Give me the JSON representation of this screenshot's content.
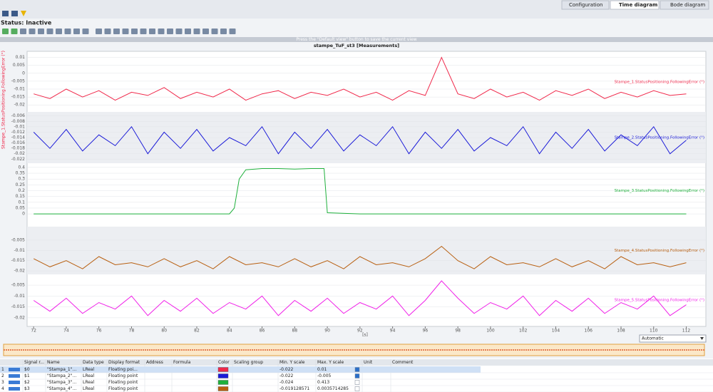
{
  "tabs": [
    "Configuration",
    "Time diagram",
    "Bode diagram"
  ],
  "status": "Status: Inactive",
  "hint": "Press the \"Default view\" button to save the current view",
  "plot": {
    "type": "line",
    "title": "stampe_TuF_st3 [Measurements]",
    "x_label": "[s]",
    "y_axis_label": "Stampe_1.StatusPositioning.FollowingError (°)",
    "xlim": [
      71.6,
      113.2
    ],
    "xticks": [
      72,
      74,
      76,
      78,
      80,
      82,
      84,
      86,
      88,
      90,
      92,
      94,
      96,
      98,
      100,
      102,
      104,
      106,
      108,
      110,
      112
    ],
    "panels": [
      {
        "name": "Stampe_1.StatusPositioning.FollowingError (°)",
        "color": "#f0284a",
        "ylim": [
          -0.0235,
          0.0125
        ],
        "yticks": [
          0.01,
          0.005,
          0,
          -0.005,
          -0.01,
          -0.015,
          -0.02
        ],
        "x": [
          72,
          73,
          74,
          75,
          76,
          77,
          78,
          79,
          80,
          81,
          82,
          83,
          84,
          85,
          86,
          87,
          88,
          89,
          90,
          91,
          92,
          93,
          94,
          95,
          96,
          97,
          98,
          99,
          100,
          101,
          102,
          103,
          104,
          105,
          106,
          107,
          108,
          109,
          110,
          111,
          112
        ],
        "values": [
          -0.013,
          -0.016,
          -0.01,
          -0.015,
          -0.011,
          -0.017,
          -0.012,
          -0.014,
          -0.009,
          -0.016,
          -0.012,
          -0.015,
          -0.01,
          -0.017,
          -0.013,
          -0.011,
          -0.016,
          -0.012,
          -0.014,
          -0.01,
          -0.015,
          -0.012,
          -0.017,
          -0.011,
          -0.014,
          0.01,
          -0.013,
          -0.016,
          -0.01,
          -0.015,
          -0.012,
          -0.017,
          -0.011,
          -0.014,
          -0.01,
          -0.016,
          -0.012,
          -0.015,
          -0.011,
          -0.014,
          -0.013
        ]
      },
      {
        "name": "Stampe_2.StatusPositioning.FollowingError (°)",
        "color": "#1a1ad8",
        "ylim": [
          -0.0235,
          -0.0045
        ],
        "yticks": [
          -0.006,
          -0.008,
          -0.01,
          -0.012,
          -0.014,
          -0.016,
          -0.018,
          -0.02,
          -0.022
        ],
        "x": [
          72,
          73,
          74,
          75,
          76,
          77,
          78,
          79,
          80,
          81,
          82,
          83,
          84,
          85,
          86,
          87,
          88,
          89,
          90,
          91,
          92,
          93,
          94,
          95,
          96,
          97,
          98,
          99,
          100,
          101,
          102,
          103,
          104,
          105,
          106,
          107,
          108,
          109,
          110,
          111,
          112
        ],
        "values": [
          -0.012,
          -0.018,
          -0.011,
          -0.019,
          -0.013,
          -0.017,
          -0.01,
          -0.02,
          -0.012,
          -0.018,
          -0.011,
          -0.019,
          -0.014,
          -0.017,
          -0.01,
          -0.02,
          -0.012,
          -0.018,
          -0.011,
          -0.019,
          -0.013,
          -0.017,
          -0.01,
          -0.02,
          -0.012,
          -0.018,
          -0.011,
          -0.019,
          -0.014,
          -0.017,
          -0.01,
          -0.02,
          -0.012,
          -0.018,
          -0.011,
          -0.019,
          -0.013,
          -0.017,
          -0.01,
          -0.02,
          -0.015
        ]
      },
      {
        "name": "Stampe_3.StatusPositioning.FollowingError (°)",
        "color": "#1fb03c",
        "ylim": [
          -0.03,
          0.43
        ],
        "yticks": [
          0.4,
          0.35,
          0.3,
          0.25,
          0.2,
          0.15,
          0.1,
          0.05,
          0
        ],
        "x": [
          72,
          76,
          80,
          84,
          84.3,
          84.6,
          85,
          86,
          87,
          88,
          89,
          89.8,
          90,
          92,
          96,
          100,
          104,
          108,
          112
        ],
        "values": [
          0,
          0,
          0,
          0,
          0.05,
          0.3,
          0.38,
          0.39,
          0.39,
          0.385,
          0.39,
          0.39,
          0.01,
          0,
          0,
          0,
          0,
          0,
          0
        ]
      },
      {
        "name": "Stampe_4.StatusPositioning.FollowingError (°)",
        "color": "#b85f10",
        "ylim": [
          -0.0217,
          0.0016
        ],
        "yticks": [
          -0.005,
          -0.01,
          -0.015,
          -0.02
        ],
        "x": [
          72,
          73,
          74,
          75,
          76,
          77,
          78,
          79,
          80,
          81,
          82,
          83,
          84,
          85,
          86,
          87,
          88,
          89,
          90,
          91,
          92,
          93,
          94,
          95,
          96,
          97,
          98,
          99,
          100,
          101,
          102,
          103,
          104,
          105,
          106,
          107,
          108,
          109,
          110,
          111,
          112
        ],
        "values": [
          -0.014,
          -0.018,
          -0.015,
          -0.019,
          -0.013,
          -0.017,
          -0.016,
          -0.018,
          -0.014,
          -0.018,
          -0.015,
          -0.019,
          -0.013,
          -0.017,
          -0.016,
          -0.018,
          -0.014,
          -0.018,
          -0.015,
          -0.019,
          -0.013,
          -0.017,
          -0.016,
          -0.018,
          -0.014,
          -0.008,
          -0.015,
          -0.019,
          -0.013,
          -0.017,
          -0.016,
          -0.018,
          -0.014,
          -0.018,
          -0.015,
          -0.019,
          -0.013,
          -0.017,
          -0.016,
          -0.018,
          -0.016
        ]
      },
      {
        "name": "Stampe_5.StatusPositioning.FollowingError (°)",
        "color": "#f020e8",
        "ylim": [
          -0.022,
          -0.0017
        ],
        "yticks": [
          -0.005,
          -0.01,
          -0.015,
          -0.02
        ],
        "x": [
          72,
          73,
          74,
          75,
          76,
          77,
          78,
          79,
          80,
          81,
          82,
          83,
          84,
          85,
          86,
          87,
          88,
          89,
          90,
          91,
          92,
          93,
          94,
          95,
          96,
          97,
          98,
          99,
          100,
          101,
          102,
          103,
          104,
          105,
          106,
          107,
          108,
          109,
          110,
          111,
          112
        ],
        "values": [
          -0.012,
          -0.017,
          -0.011,
          -0.018,
          -0.013,
          -0.016,
          -0.01,
          -0.019,
          -0.012,
          -0.017,
          -0.011,
          -0.018,
          -0.013,
          -0.016,
          -0.01,
          -0.019,
          -0.012,
          -0.017,
          -0.011,
          -0.018,
          -0.013,
          -0.016,
          -0.01,
          -0.019,
          -0.012,
          -0.003,
          -0.011,
          -0.018,
          -0.013,
          -0.016,
          -0.01,
          -0.019,
          -0.012,
          -0.017,
          -0.011,
          -0.018,
          -0.013,
          -0.016,
          -0.01,
          -0.019,
          -0.014
        ]
      }
    ]
  },
  "scale_mode": "Automatic",
  "table": {
    "columns": [
      "Signal r...",
      "Name",
      "Data type",
      "Display format",
      "Address",
      "Formula",
      "Color",
      "Scaling group",
      "Min. Y scale",
      "Max. Y scale",
      "Unit",
      "Comment"
    ],
    "rows": [
      {
        "index": "1",
        "signal": "$0",
        "name": "\"Stampa_1\"...",
        "data_type": "LReal",
        "format": "Floating poi...",
        "color": "#f0284a",
        "min": "-0.022",
        "max": "0.01"
      },
      {
        "index": "2",
        "signal": "$1",
        "name": "\"Stampa_2\"...",
        "data_type": "LReal",
        "format": "Floating point",
        "color": "#1a1ad8",
        "min": "-0.022",
        "max": "-0.005"
      },
      {
        "index": "3",
        "signal": "$2",
        "name": "\"Stampa_3\"...",
        "data_type": "LReal",
        "format": "Floating point",
        "color": "#1fb03c",
        "min": "-0.024",
        "max": "0.413"
      },
      {
        "index": "4",
        "signal": "$3",
        "name": "\"Stampa_4\"...",
        "data_type": "LReal",
        "format": "Floating point",
        "color": "#b85f10",
        "min": "-0.019128571",
        "max": "0.0035714285"
      }
    ]
  }
}
